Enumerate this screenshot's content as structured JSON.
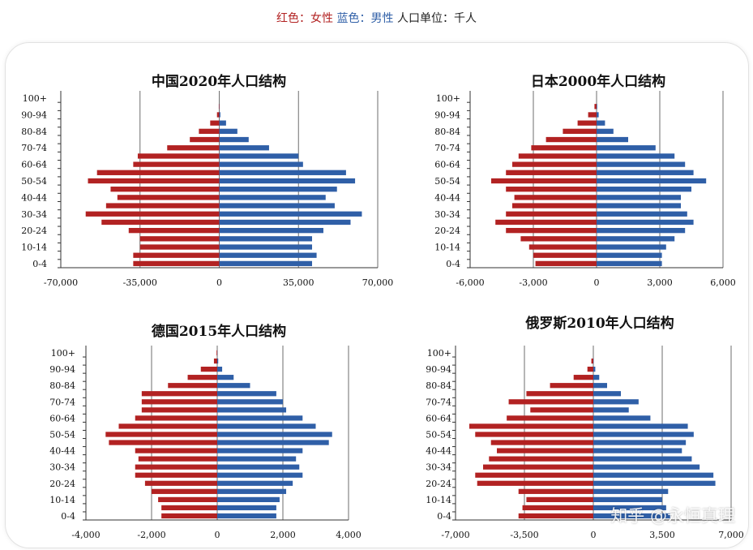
{
  "caption": {
    "red_label": "红色：女性",
    "blue_label": "蓝色：男性",
    "unit": "人口单位：千人"
  },
  "colors": {
    "female": "#b22222",
    "male": "#2f5fa7",
    "grid": "#6e6e6e"
  },
  "watermark": "知乎 @永恒真理",
  "chart_data": [
    {
      "type": "bar",
      "title": "中国2020年人口结构",
      "categories": [
        "0-4",
        "5-9",
        "10-14",
        "15-19",
        "20-24",
        "25-29",
        "30-34",
        "35-39",
        "40-44",
        "45-49",
        "50-54",
        "55-59",
        "60-64",
        "65-69",
        "70-74",
        "75-79",
        "80-84",
        "85-89",
        "90-94",
        "95-99",
        "100+"
      ],
      "category_labels": [
        "0-4",
        "",
        "10-14",
        "",
        "20-24",
        "",
        "30-34",
        "",
        "40-44",
        "",
        "50-54",
        "",
        "60-64",
        "",
        "70-74",
        "",
        "80-84",
        "",
        "90-94",
        "",
        "100+"
      ],
      "series": [
        {
          "name": "女性",
          "values": [
            -38000,
            -38000,
            -35000,
            -35000,
            -40000,
            -52000,
            -59000,
            -50000,
            -45000,
            -48000,
            -58000,
            -54000,
            -38000,
            -36000,
            -23000,
            -13000,
            -9000,
            -4000,
            -1000,
            -200,
            0
          ]
        },
        {
          "name": "男性",
          "values": [
            41000,
            43000,
            41000,
            41000,
            46000,
            58000,
            63000,
            51000,
            47000,
            52000,
            60000,
            56000,
            37000,
            35000,
            22000,
            13000,
            8000,
            3000,
            500,
            100,
            0
          ]
        }
      ],
      "xlim": [
        -70000,
        70000
      ],
      "xticks": [
        -70000,
        -35000,
        0,
        35000,
        70000
      ],
      "xtick_labels": [
        "-70,000",
        "-35,000",
        "0",
        "35,000",
        "70,000"
      ]
    },
    {
      "type": "bar",
      "title": "日本2000年人口结构",
      "categories": [
        "0-4",
        "5-9",
        "10-14",
        "15-19",
        "20-24",
        "25-29",
        "30-34",
        "35-39",
        "40-44",
        "45-49",
        "50-54",
        "55-59",
        "60-64",
        "65-69",
        "70-74",
        "75-79",
        "80-84",
        "85-89",
        "90-94",
        "95-99",
        "100+"
      ],
      "category_labels": [
        "0-4",
        "",
        "10-14",
        "",
        "20-24",
        "",
        "30-34",
        "",
        "40-44",
        "",
        "50-54",
        "",
        "60-64",
        "",
        "70-74",
        "",
        "80-84",
        "",
        "90-94",
        "",
        "100+"
      ],
      "series": [
        {
          "name": "女性",
          "values": [
            -2900,
            -3000,
            -3200,
            -3600,
            -4300,
            -4800,
            -4300,
            -4000,
            -3900,
            -4300,
            -5000,
            -4300,
            -4000,
            -3700,
            -3100,
            -2400,
            -1600,
            -900,
            -400,
            -100,
            0
          ]
        },
        {
          "name": "男性",
          "values": [
            3100,
            3100,
            3300,
            3700,
            4200,
            4600,
            4300,
            4000,
            4000,
            4500,
            5200,
            4600,
            4200,
            3700,
            2800,
            1500,
            800,
            400,
            100,
            30,
            0
          ]
        }
      ],
      "xlim": [
        -6000,
        6000
      ],
      "xticks": [
        -6000,
        -3000,
        0,
        3000,
        6000
      ],
      "xtick_labels": [
        "-6,000",
        "-3,000",
        "0",
        "3,000",
        "6,000"
      ]
    },
    {
      "type": "bar",
      "title": "德国2015年人口结构",
      "categories": [
        "0-4",
        "5-9",
        "10-14",
        "15-19",
        "20-24",
        "25-29",
        "30-34",
        "35-39",
        "40-44",
        "45-49",
        "50-54",
        "55-59",
        "60-64",
        "65-69",
        "70-74",
        "75-79",
        "80-84",
        "85-89",
        "90-94",
        "95-99",
        "100+"
      ],
      "category_labels": [
        "0-4",
        "",
        "10-14",
        "",
        "20-24",
        "",
        "30-34",
        "",
        "40-44",
        "",
        "50-54",
        "",
        "60-64",
        "",
        "70-74",
        "",
        "80-84",
        "",
        "90-94",
        "",
        "100+"
      ],
      "series": [
        {
          "name": "女性",
          "values": [
            -1700,
            -1700,
            -1800,
            -2000,
            -2200,
            -2500,
            -2500,
            -2400,
            -2500,
            -3300,
            -3400,
            -3000,
            -2500,
            -2300,
            -2300,
            -2300,
            -1500,
            -900,
            -500,
            -100,
            -20
          ]
        },
        {
          "name": "男性",
          "values": [
            1800,
            1800,
            1900,
            2100,
            2300,
            2600,
            2500,
            2400,
            2600,
            3400,
            3500,
            3000,
            2600,
            2100,
            2000,
            1800,
            1000,
            500,
            150,
            30,
            5
          ]
        }
      ],
      "xlim": [
        -4000,
        4000
      ],
      "xticks": [
        -4000,
        -2000,
        0,
        2000,
        4000
      ],
      "xtick_labels": [
        "-4,000",
        "-2,000",
        "0",
        "2,000",
        "4,000"
      ]
    },
    {
      "type": "bar",
      "title": "俄罗斯2010年人口结构",
      "categories": [
        "0-4",
        "5-9",
        "10-14",
        "15-19",
        "20-24",
        "25-29",
        "30-34",
        "35-39",
        "40-44",
        "45-49",
        "50-54",
        "55-59",
        "60-64",
        "65-69",
        "70-74",
        "75-79",
        "80-84",
        "85-89",
        "90-94",
        "95-99",
        "100+"
      ],
      "category_labels": [
        "0-4",
        "",
        "10-14",
        "",
        "20-24",
        "",
        "30-34",
        "",
        "40-44",
        "",
        "50-54",
        "",
        "60-64",
        "",
        "70-74",
        "",
        "80-84",
        "",
        "90-94",
        "",
        "100+"
      ],
      "series": [
        {
          "name": "女性",
          "values": [
            -3800,
            -3600,
            -3400,
            -3800,
            -5900,
            -6000,
            -5600,
            -5300,
            -4900,
            -5200,
            -6000,
            -6300,
            -4400,
            -3200,
            -4300,
            -3400,
            -2200,
            -1000,
            -300,
            -100,
            0
          ]
        },
        {
          "name": "男性",
          "values": [
            3900,
            3700,
            3500,
            3800,
            6200,
            6100,
            5400,
            5000,
            4500,
            4700,
            5100,
            4800,
            2900,
            1800,
            2300,
            1400,
            700,
            300,
            100,
            20,
            0
          ]
        }
      ],
      "xlim": [
        -7000,
        7000
      ],
      "xticks": [
        -7000,
        -3500,
        0,
        3500,
        7000
      ],
      "xtick_labels": [
        "-7,000",
        "-3,500",
        "0",
        "3,500",
        "7,000"
      ]
    }
  ]
}
